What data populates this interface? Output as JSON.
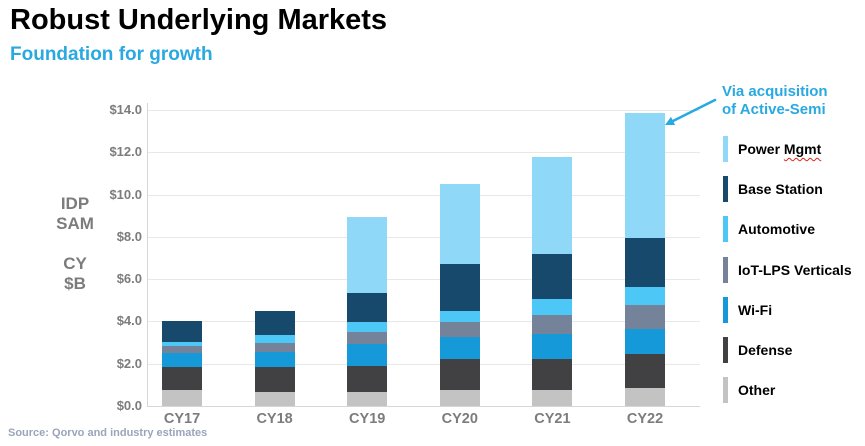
{
  "header": {
    "title": "Robust Underlying Markets",
    "subtitle": "Foundation for growth"
  },
  "y_axis_title": {
    "line1": "IDP",
    "line2": "SAM",
    "line3": "CY",
    "line4": "$B"
  },
  "annotation": {
    "line1": "Via acquisition",
    "line2": "of Active-Semi"
  },
  "source": "Source: Qorvo and industry estimates",
  "colors": {
    "accent_blue": "#29a9e1",
    "power_mgmt": "#8fd8f7",
    "base_station": "#17496d",
    "automotive": "#4cc7f6",
    "iot_lps": "#74829a",
    "wifi": "#1599d8",
    "defense": "#414144",
    "other": "#c3c3c3",
    "axis_text": "#7c7c7c",
    "gridline": "#e8e8e8"
  },
  "legend": {
    "items": [
      {
        "label": "Power Mgmt",
        "color": "#8fd8f7",
        "spellcheck_word": "Mgmt"
      },
      {
        "label": "Base Station",
        "color": "#17496d"
      },
      {
        "label": "Automotive",
        "color": "#4cc7f6"
      },
      {
        "label": "IoT-LPS Verticals",
        "color": "#74829a"
      },
      {
        "label": "Wi-Fi",
        "color": "#1599d8"
      },
      {
        "label": "Defense",
        "color": "#414144"
      },
      {
        "label": "Other",
        "color": "#c3c3c3"
      }
    ]
  },
  "chart_data": {
    "type": "bar",
    "stacked": true,
    "title": "Robust Underlying Markets",
    "subtitle": "Foundation for growth",
    "ylabel": "IDP SAM CY $B",
    "ylim": [
      0,
      14
    ],
    "ytick_interval": 2,
    "ytick_labels": [
      "$0.0",
      "$2.0",
      "$4.0",
      "$6.0",
      "$8.0",
      "$10.0",
      "$12.0",
      "$14.0"
    ],
    "grid": true,
    "legend_position": "right",
    "categories": [
      "CY17",
      "CY18",
      "CY19",
      "CY20",
      "CY21",
      "CY22"
    ],
    "series": [
      {
        "name": "Other",
        "color": "#c3c3c3",
        "values": [
          0.75,
          0.65,
          0.65,
          0.75,
          0.75,
          0.85
        ]
      },
      {
        "name": "Defense",
        "color": "#414144",
        "values": [
          1.1,
          1.2,
          1.25,
          1.45,
          1.45,
          1.6
        ]
      },
      {
        "name": "Wi-Fi",
        "color": "#1599d8",
        "values": [
          0.65,
          0.7,
          1.05,
          1.05,
          1.2,
          1.2
        ]
      },
      {
        "name": "IoT-LPS Verticals",
        "color": "#74829a",
        "values": [
          0.35,
          0.45,
          0.55,
          0.7,
          0.9,
          1.15
        ]
      },
      {
        "name": "Automotive",
        "color": "#4cc7f6",
        "values": [
          0.2,
          0.35,
          0.45,
          0.55,
          0.75,
          0.85
        ]
      },
      {
        "name": "Base Station",
        "color": "#17496d",
        "values": [
          0.95,
          1.15,
          1.4,
          2.2,
          2.15,
          2.3
        ]
      },
      {
        "name": "Power Mgmt",
        "color": "#8fd8f7",
        "values": [
          0.0,
          0.0,
          3.6,
          3.8,
          4.6,
          5.9
        ]
      }
    ],
    "totals": [
      4.0,
      4.5,
      8.95,
      10.5,
      11.8,
      13.85
    ],
    "annotation": {
      "text": "Via acquisition of Active-Semi",
      "target_category": "CY22",
      "target_series": "Power Mgmt"
    }
  }
}
